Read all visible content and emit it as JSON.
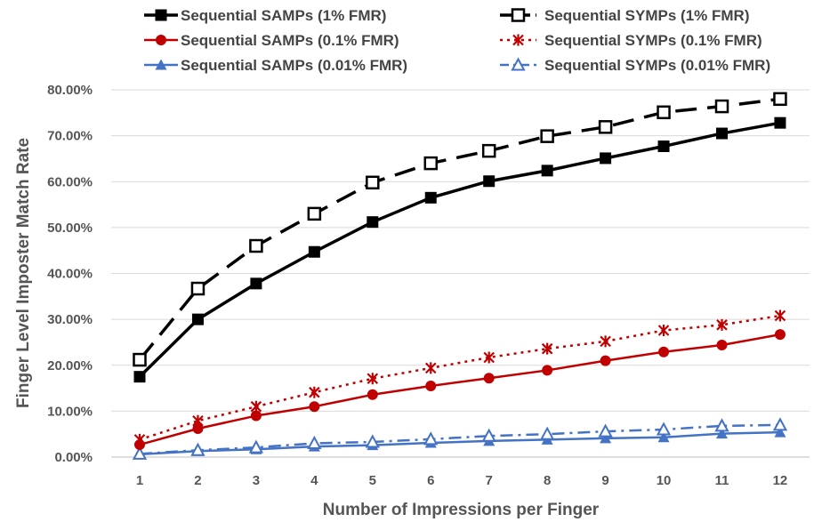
{
  "chart_data": {
    "type": "line",
    "title": "",
    "xlabel": "Number of Impressions per Finger",
    "ylabel": "Finger Level Imposter Match Rate",
    "x": [
      1,
      2,
      3,
      4,
      5,
      6,
      7,
      8,
      9,
      10,
      11,
      12
    ],
    "x_tick_labels": [
      "1",
      "2",
      "3",
      "4",
      "5",
      "6",
      "7",
      "8",
      "9",
      "10",
      "11",
      "12"
    ],
    "ylim": [
      0,
      80
    ],
    "y_tick_labels": [
      "0.00%",
      "10.00%",
      "20.00%",
      "30.00%",
      "40.00%",
      "50.00%",
      "60.00%",
      "70.00%",
      "80.00%"
    ],
    "grid": "horizontal",
    "legend_position": "top",
    "series": [
      {
        "name": "Sequential SAMPs (1% FMR)",
        "color": "#000000",
        "line": "solid",
        "marker": "square-filled",
        "values": [
          17.5,
          30.0,
          37.8,
          44.7,
          51.2,
          56.5,
          60.1,
          62.4,
          65.1,
          67.7,
          70.5,
          72.8
        ]
      },
      {
        "name": "Sequential SYMPs (1% FMR)",
        "color": "#000000",
        "line": "dashed",
        "marker": "square-open",
        "values": [
          21.2,
          36.7,
          46.0,
          53.0,
          59.8,
          64.0,
          66.7,
          69.9,
          71.9,
          75.1,
          76.4,
          78.0
        ]
      },
      {
        "name": "Sequential SAMPs (0.1% FMR)",
        "color": "#c00000",
        "line": "solid",
        "marker": "circle-filled",
        "values": [
          2.7,
          6.2,
          9.0,
          11.0,
          13.6,
          15.5,
          17.2,
          18.9,
          21.0,
          22.9,
          24.4,
          26.7
        ]
      },
      {
        "name": "Sequential SYMPs (0.1% FMR)",
        "color": "#c00000",
        "line": "dotted",
        "marker": "asterisk",
        "values": [
          3.8,
          7.9,
          11.0,
          14.1,
          17.1,
          19.4,
          21.7,
          23.6,
          25.2,
          27.6,
          28.8,
          30.8
        ]
      },
      {
        "name": "Sequential SAMPs (0.01% FMR)",
        "color": "#4472c4",
        "line": "solid",
        "marker": "triangle-filled",
        "values": [
          0.6,
          1.3,
          1.7,
          2.3,
          2.6,
          3.1,
          3.5,
          3.8,
          4.1,
          4.3,
          5.1,
          5.4
        ]
      },
      {
        "name": "Sequential SYMPs (0.01% FMR)",
        "color": "#4472c4",
        "line": "dashdot",
        "marker": "triangle-open",
        "values": [
          0.7,
          1.5,
          2.1,
          3.0,
          3.3,
          3.9,
          4.6,
          5.0,
          5.6,
          6.0,
          6.8,
          7.0
        ]
      }
    ]
  }
}
